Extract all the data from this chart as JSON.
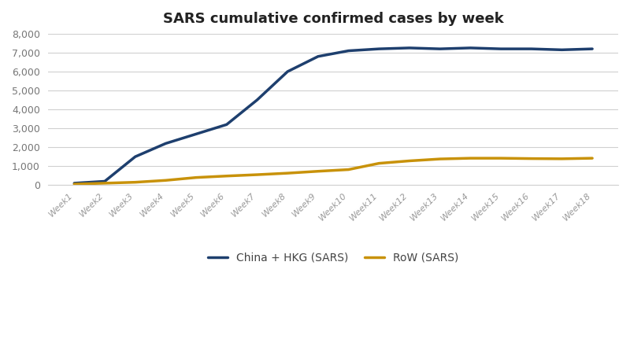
{
  "title": "SARS cumulative confirmed cases by week",
  "weeks": [
    "Week1",
    "Week2",
    "Week3",
    "Week4",
    "Week5",
    "Week6",
    "Week7",
    "Week8",
    "Week9",
    "Week10",
    "Week11",
    "Week12",
    "Week13",
    "Week14",
    "Week15",
    "Week16",
    "Week17",
    "Week18"
  ],
  "china_hkg": [
    100,
    200,
    1500,
    2200,
    2700,
    3200,
    4500,
    6000,
    6800,
    7100,
    7200,
    7250,
    7200,
    7250,
    7200,
    7200,
    7150,
    7200
  ],
  "row": [
    50,
    100,
    150,
    250,
    400,
    480,
    550,
    630,
    730,
    820,
    1150,
    1280,
    1380,
    1420,
    1420,
    1400,
    1390,
    1420
  ],
  "china_color": "#1e3f6e",
  "row_color": "#c8920a",
  "background_color": "#ffffff",
  "grid_color": "#d0d0d0",
  "ylim": [
    0,
    8000
  ],
  "yticks": [
    0,
    1000,
    2000,
    3000,
    4000,
    5000,
    6000,
    7000,
    8000
  ],
  "legend_china": "China + HKG (SARS)",
  "legend_row": "RoW (SARS)",
  "line_width": 2.5
}
